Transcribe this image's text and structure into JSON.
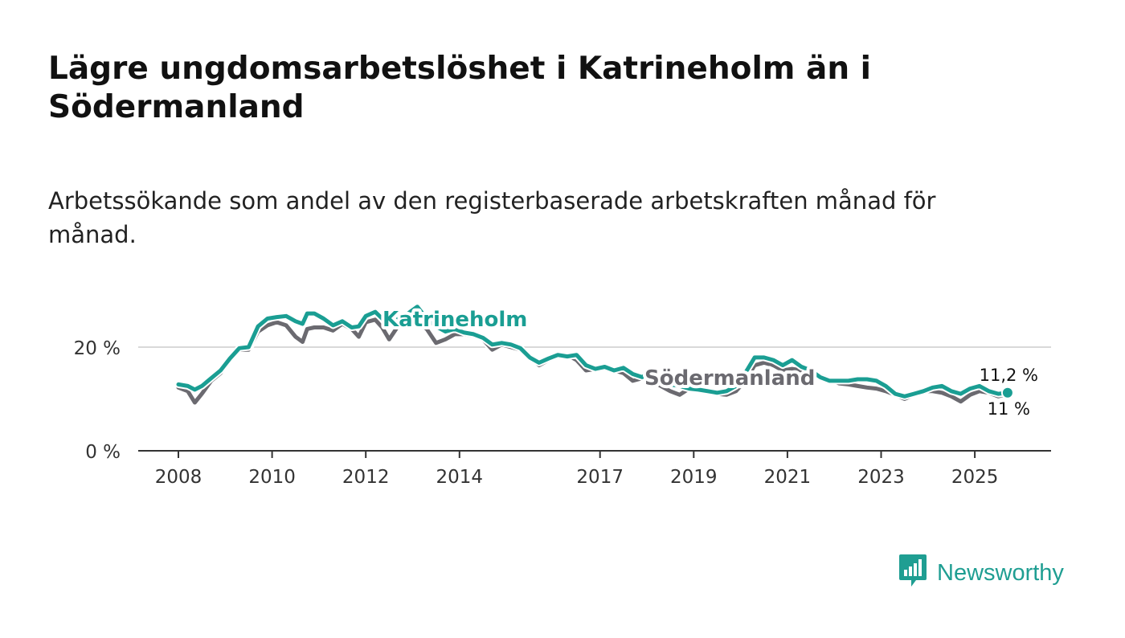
{
  "chart_data": {
    "type": "line",
    "title": "Lägre ungdomsarbetslöshet i Katrineholm än i Södermanland",
    "subtitle": "Arbetssökande som andel av den registerbaserade arbetskraften månad för månad.",
    "xlabel": "",
    "ylabel": "",
    "xlim": [
      2007.4,
      2026.5
    ],
    "ylim": [
      0,
      28
    ],
    "x_ticks": [
      2008,
      2010,
      2012,
      2014,
      2017,
      2019,
      2021,
      2023,
      2025
    ],
    "x_tick_labels": [
      "2008",
      "2010",
      "2012",
      "2014",
      "2017",
      "2019",
      "2021",
      "2023",
      "2025"
    ],
    "y_ticks": [
      0,
      20
    ],
    "y_tick_labels": [
      "0 %",
      "20 %"
    ],
    "series": [
      {
        "name": "Södermanland",
        "label": "Södermanland",
        "color": "#6b6a70",
        "end_label": "11 %",
        "x": [
          2008.0,
          2008.2,
          2008.35,
          2008.5,
          2008.7,
          2008.9,
          2009.1,
          2009.3,
          2009.5,
          2009.7,
          2009.9,
          2010.1,
          2010.3,
          2010.5,
          2010.65,
          2010.75,
          2010.9,
          2011.1,
          2011.3,
          2011.5,
          2011.7,
          2011.85,
          2012.0,
          2012.2,
          2012.35,
          2012.5,
          2012.7,
          2012.9,
          2013.1,
          2013.3,
          2013.5,
          2013.7,
          2013.9,
          2014.1,
          2014.3,
          2014.5,
          2014.7,
          2014.9,
          2015.1,
          2015.3,
          2015.5,
          2015.7,
          2015.9,
          2016.1,
          2016.3,
          2016.5,
          2016.7,
          2016.9,
          2017.1,
          2017.3,
          2017.5,
          2017.7,
          2017.9,
          2018.1,
          2018.3,
          2018.5,
          2018.7,
          2018.9,
          2019.1,
          2019.3,
          2019.5,
          2019.7,
          2019.9,
          2020.1,
          2020.3,
          2020.5,
          2020.7,
          2020.9,
          2021.1,
          2021.3,
          2021.5,
          2021.7,
          2021.9,
          2022.1,
          2022.3,
          2022.5,
          2022.7,
          2022.9,
          2023.1,
          2023.3,
          2023.5,
          2023.7,
          2023.9,
          2024.1,
          2024.3,
          2024.5,
          2024.7,
          2024.9,
          2025.1,
          2025.3,
          2025.5,
          2025.7
        ],
        "values": [
          12.2,
          11.5,
          9.3,
          11.0,
          13.5,
          15.0,
          17.5,
          19.5,
          19.5,
          23.0,
          24.2,
          24.8,
          24.2,
          22.0,
          21.0,
          23.5,
          23.8,
          23.8,
          23.2,
          24.5,
          23.5,
          22.0,
          24.8,
          25.3,
          23.8,
          21.5,
          24.2,
          24.5,
          24.8,
          23.5,
          20.8,
          21.5,
          22.5,
          22.5,
          22.2,
          21.5,
          19.5,
          20.5,
          20.0,
          19.5,
          18.2,
          16.5,
          17.5,
          18.2,
          18.5,
          17.5,
          15.5,
          15.8,
          16.0,
          15.5,
          15.0,
          13.5,
          14.0,
          13.5,
          12.5,
          11.5,
          10.8,
          12.0,
          12.0,
          11.8,
          11.0,
          10.8,
          11.5,
          13.5,
          16.5,
          17.0,
          16.5,
          15.5,
          15.8,
          15.5,
          15.2,
          14.5,
          13.8,
          13.0,
          12.8,
          12.5,
          12.2,
          12.0,
          11.5,
          10.8,
          10.0,
          10.8,
          11.5,
          11.5,
          11.2,
          10.5,
          9.5,
          10.8,
          11.5,
          11.2,
          10.5,
          11.0
        ]
      },
      {
        "name": "Katrineholm",
        "label": "Katrineholm",
        "color": "#1a9e93",
        "end_label": "11,2 %",
        "x": [
          2008.0,
          2008.2,
          2008.35,
          2008.5,
          2008.7,
          2008.9,
          2009.1,
          2009.3,
          2009.5,
          2009.7,
          2009.9,
          2010.1,
          2010.3,
          2010.5,
          2010.65,
          2010.75,
          2010.9,
          2011.1,
          2011.3,
          2011.5,
          2011.7,
          2011.85,
          2012.0,
          2012.2,
          2012.35,
          2012.5,
          2012.7,
          2012.9,
          2013.1,
          2013.3,
          2013.5,
          2013.7,
          2013.9,
          2014.1,
          2014.3,
          2014.5,
          2014.7,
          2014.9,
          2015.1,
          2015.3,
          2015.5,
          2015.7,
          2015.9,
          2016.1,
          2016.3,
          2016.5,
          2016.7,
          2016.9,
          2017.1,
          2017.3,
          2017.5,
          2017.7,
          2017.9,
          2018.1,
          2018.3,
          2018.5,
          2018.7,
          2018.9,
          2019.1,
          2019.3,
          2019.5,
          2019.7,
          2019.9,
          2020.1,
          2020.3,
          2020.5,
          2020.7,
          2020.9,
          2021.1,
          2021.3,
          2021.5,
          2021.7,
          2021.9,
          2022.1,
          2022.3,
          2022.5,
          2022.7,
          2022.9,
          2023.1,
          2023.3,
          2023.5,
          2023.7,
          2023.9,
          2024.1,
          2024.3,
          2024.5,
          2024.7,
          2024.9,
          2025.1,
          2025.3,
          2025.5,
          2025.7
        ],
        "values": [
          12.8,
          12.5,
          11.8,
          12.5,
          14.0,
          15.5,
          17.8,
          19.8,
          20.0,
          24.0,
          25.5,
          25.8,
          26.0,
          25.0,
          24.5,
          26.5,
          26.5,
          25.5,
          24.2,
          25.0,
          23.8,
          24.0,
          26.0,
          26.8,
          25.5,
          24.0,
          25.5,
          26.5,
          27.8,
          25.5,
          24.0,
          23.0,
          23.5,
          22.8,
          22.5,
          21.8,
          20.5,
          20.8,
          20.5,
          19.8,
          18.0,
          17.0,
          17.8,
          18.5,
          18.2,
          18.5,
          16.5,
          15.8,
          16.2,
          15.5,
          16.0,
          14.8,
          14.2,
          15.5,
          13.5,
          12.8,
          12.5,
          12.0,
          11.8,
          11.5,
          11.2,
          11.5,
          12.5,
          15.0,
          18.0,
          18.0,
          17.5,
          16.5,
          17.5,
          16.2,
          15.5,
          14.2,
          13.5,
          13.5,
          13.5,
          13.8,
          13.8,
          13.5,
          12.5,
          11.0,
          10.5,
          11.0,
          11.5,
          12.2,
          12.5,
          11.5,
          11.0,
          12.0,
          12.5,
          11.5,
          11.0,
          11.2
        ]
      }
    ]
  },
  "brand": {
    "name": "Newsworthy",
    "color": "#1f9e92"
  },
  "colors": {
    "grid": "#d9d9d9",
    "axis": "#333333",
    "tick_text": "#333333"
  }
}
